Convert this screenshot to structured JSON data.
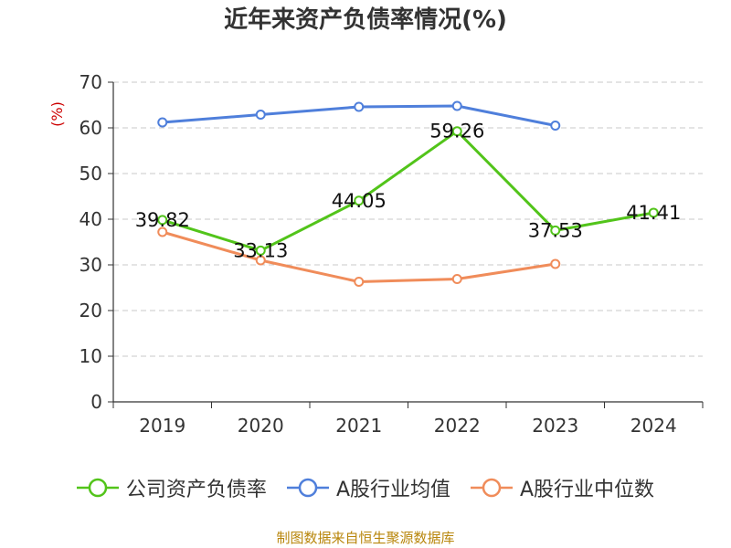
{
  "chart_data": {
    "type": "line",
    "title": "近年来资产负债率情况(%)",
    "ylabel": "(%)",
    "xlabel": "",
    "categories": [
      "2019",
      "2020",
      "2021",
      "2022",
      "2023",
      "2024"
    ],
    "ylim": [
      0,
      70
    ],
    "yticks": [
      0,
      10,
      20,
      30,
      40,
      50,
      60,
      70
    ],
    "grid": true,
    "legend_position": "bottom",
    "series": [
      {
        "name": "公司资产负债率",
        "color": "#52c41a",
        "values": [
          39.82,
          33.13,
          44.05,
          59.26,
          37.53,
          41.41
        ],
        "labels": [
          "39.82",
          "33.13",
          "44.05",
          "59.26",
          "37.53",
          "41.41"
        ]
      },
      {
        "name": "A股行业均值",
        "color": "#4f7fdb",
        "values": [
          61.2,
          62.9,
          64.6,
          64.8,
          60.5,
          null
        ]
      },
      {
        "name": "A股行业中位数",
        "color": "#f08c5a",
        "values": [
          37.2,
          31.0,
          26.3,
          26.9,
          30.2,
          null
        ]
      }
    ]
  },
  "footer": {
    "source": "制图数据来自恒生聚源数据库"
  }
}
